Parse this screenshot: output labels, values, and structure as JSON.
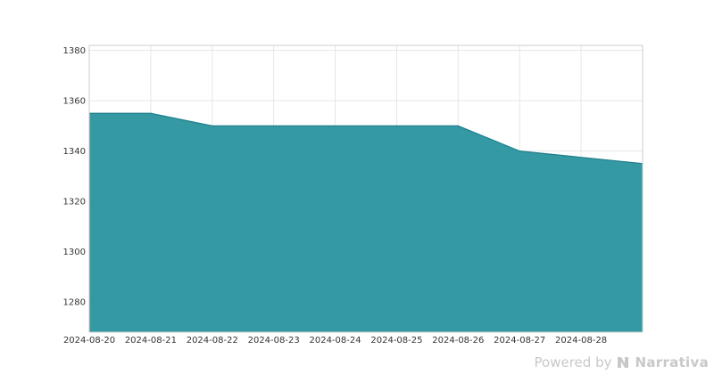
{
  "chart_data": {
    "type": "area",
    "title": "",
    "xlabel": "",
    "ylabel": "",
    "x": [
      "2024-08-20",
      "2024-08-21",
      "2024-08-22",
      "2024-08-23",
      "2024-08-24",
      "2024-08-25",
      "2024-08-26",
      "2024-08-27",
      "2024-08-28",
      "2024-08-29"
    ],
    "series": [
      {
        "values": [
          1355,
          1355,
          1350,
          1350,
          1350,
          1350,
          1350,
          1340,
          1337.5,
          1335
        ],
        "color": "#2a939f"
      }
    ],
    "x_tick_labels": [
      "2024-08-20",
      "2024-08-21",
      "2024-08-22",
      "2024-08-23",
      "2024-08-24",
      "2024-08-25",
      "2024-08-26",
      "2024-08-27",
      "2024-08-28"
    ],
    "y_ticks": [
      1280,
      1300,
      1320,
      1340,
      1360,
      1380
    ],
    "ylim": [
      1268,
      1382
    ],
    "grid": true,
    "legend": "none"
  },
  "footer": {
    "powered_by": "Powered by",
    "brand": "Narrativa",
    "logo_icon": "narrativa-logo-icon"
  }
}
